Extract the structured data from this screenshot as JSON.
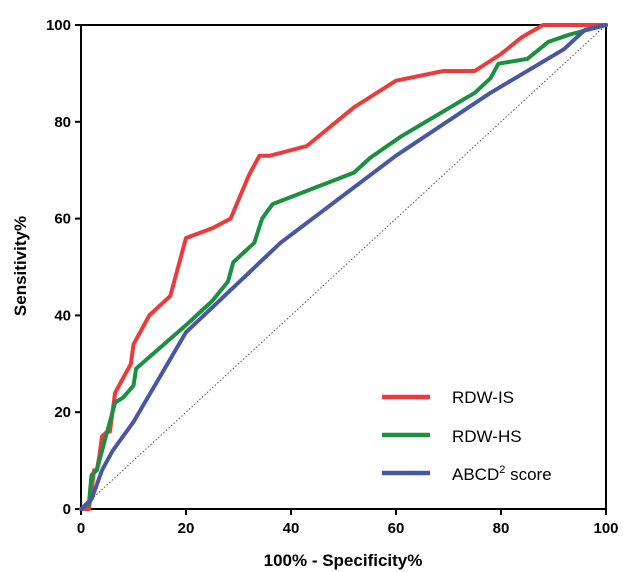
{
  "chart_data": {
    "type": "line",
    "xlabel": "100% - Specificity%",
    "ylabel": "Sensitivity%",
    "xlim": [
      0,
      100
    ],
    "ylim": [
      0,
      100
    ],
    "x_ticks": [
      "0",
      "20",
      "40",
      "60",
      "80",
      "100"
    ],
    "y_ticks": [
      "0",
      "20",
      "40",
      "60",
      "80",
      "100"
    ],
    "grid": false,
    "legend_position": "bottom-right",
    "reference_line": {
      "style": "dotted",
      "color": "#555555",
      "points": [
        [
          0,
          0
        ],
        [
          100,
          100
        ]
      ]
    },
    "series": [
      {
        "name": "RDW-IS",
        "color": "#ee3a3a",
        "points": [
          [
            0,
            0
          ],
          [
            1.5,
            0
          ],
          [
            2,
            4
          ],
          [
            2.5,
            8
          ],
          [
            3,
            8
          ],
          [
            3.5,
            11
          ],
          [
            4,
            15
          ],
          [
            5,
            16
          ],
          [
            5.5,
            16
          ],
          [
            6,
            20
          ],
          [
            6.5,
            24
          ],
          [
            9.5,
            30
          ],
          [
            10,
            34
          ],
          [
            13,
            40
          ],
          [
            17,
            44
          ],
          [
            20,
            56
          ],
          [
            25,
            58
          ],
          [
            28.5,
            60
          ],
          [
            32,
            69
          ],
          [
            34,
            73
          ],
          [
            36,
            73
          ],
          [
            43,
            75
          ],
          [
            52,
            83
          ],
          [
            60,
            88.5
          ],
          [
            69,
            90.5
          ],
          [
            75,
            90.5
          ],
          [
            80,
            94
          ],
          [
            84,
            97.5
          ],
          [
            88,
            100
          ],
          [
            100,
            100
          ]
        ]
      },
      {
        "name": "RDW-HS",
        "color": "#1a9041",
        "points": [
          [
            0,
            0
          ],
          [
            1.5,
            1
          ],
          [
            2,
            7
          ],
          [
            3,
            8
          ],
          [
            3.5,
            10
          ],
          [
            4.5,
            14
          ],
          [
            5.5,
            18
          ],
          [
            6,
            20
          ],
          [
            6.5,
            22
          ],
          [
            8,
            23
          ],
          [
            10,
            25.5
          ],
          [
            10.5,
            29
          ],
          [
            20,
            38
          ],
          [
            25,
            43
          ],
          [
            28,
            47
          ],
          [
            29,
            51
          ],
          [
            31,
            53
          ],
          [
            33,
            55
          ],
          [
            34.5,
            60
          ],
          [
            36.5,
            63
          ],
          [
            52,
            69.5
          ],
          [
            55,
            72.5
          ],
          [
            61,
            77
          ],
          [
            75,
            86
          ],
          [
            78,
            89
          ],
          [
            79.5,
            92
          ],
          [
            85,
            93
          ],
          [
            89,
            96.5
          ],
          [
            93,
            98
          ],
          [
            100,
            100
          ]
        ]
      },
      {
        "name": "ABCD² score",
        "label_main": "ABCD",
        "label_sup": "2",
        "label_rest": " score",
        "color": "#4856a4",
        "points": [
          [
            0,
            0
          ],
          [
            2,
            2
          ],
          [
            4,
            8
          ],
          [
            6,
            12
          ],
          [
            10,
            18
          ],
          [
            20,
            36.5
          ],
          [
            38,
            55
          ],
          [
            60,
            73
          ],
          [
            78,
            86
          ],
          [
            92,
            95
          ],
          [
            96,
            99
          ],
          [
            100,
            100
          ]
        ]
      }
    ]
  }
}
